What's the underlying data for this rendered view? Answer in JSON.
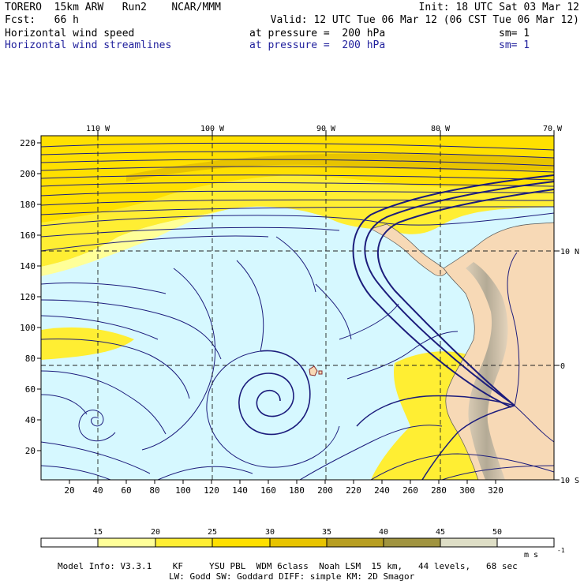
{
  "header": {
    "model": "TORERO  15km ARW   Run2    NCAR/MMM",
    "init": "Init: 18 UTC Sat 03 Mar 12",
    "fcst": "Fcst:   66 h",
    "valid": "Valid: 12 UTC Tue 06 Mar 12 (06 CST Tue 06 Mar 12)",
    "fields": [
      {
        "name": "Horizontal wind speed",
        "level": "at pressure =  200 hPa",
        "smooth": "sm= 1"
      },
      {
        "name": "Horizontal wind streamlines",
        "level": "at pressure =  200 hPa",
        "smooth": "sm= 1"
      }
    ]
  },
  "map": {
    "lon_labels": [
      "110 W",
      "100 W",
      "90 W",
      "80 W",
      "70 W"
    ],
    "lat_labels": [
      "10 N",
      "0",
      "10 S"
    ],
    "y_ticks": [
      "220",
      "200",
      "180",
      "160",
      "140",
      "120",
      "100",
      "80",
      "60",
      "40",
      "20"
    ],
    "x_ticks": [
      "20",
      "40",
      "60",
      "80",
      "100",
      "120",
      "140",
      "160",
      "180",
      "200",
      "220",
      "240",
      "260",
      "280",
      "300",
      "320"
    ],
    "colors": {
      "ocean_calm": "#d6f8ff",
      "land": "#f7d9b6",
      "streamline": "#1c1c7c"
    }
  },
  "colorbar": {
    "labels": [
      "15",
      "20",
      "25",
      "30",
      "35",
      "40",
      "45",
      "50"
    ],
    "unit": "m s",
    "unit_exp": "-1",
    "colors": [
      "#ffffff",
      "#ffff99",
      "#ffee33",
      "#ffe000",
      "#e8c400",
      "#b79e22",
      "#a09440",
      "#9f9b66",
      "#dedec6"
    ]
  },
  "footer": {
    "line1": "Model Info: V3.3.1    KF     YSU PBL  WDM 6class  Noah LSM  15 km,   44 levels,   68 sec",
    "line2": "LW: Godd SW: Goddard DIFF: simple KM: 2D Smagor"
  }
}
